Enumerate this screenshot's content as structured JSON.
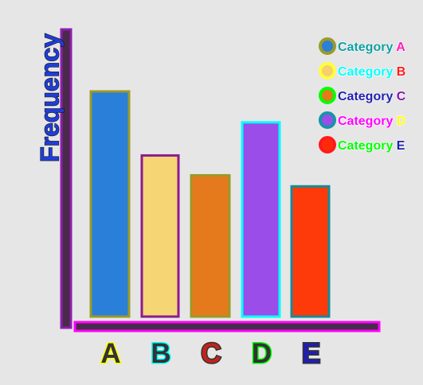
{
  "chart_data": {
    "type": "bar",
    "categories": [
      "A",
      "B",
      "C",
      "D",
      "E"
    ],
    "values": [
      10.2,
      7.3,
      6.4,
      8.8,
      5.9
    ],
    "ylabel": "Frequency",
    "legend": {
      "placement": "top-right",
      "items": [
        {
          "prefix": "Category ",
          "suffix": "A",
          "fill": "#2a7fd8",
          "ring": "#9a9a2a",
          "text": "#0f9ea0",
          "text_stroke": "#ffffff",
          "suffix_color": "#ff1fb8"
        },
        {
          "prefix": "Category ",
          "suffix": "B",
          "fill": "#f5d06c",
          "ring": "#ffff3a",
          "text": "#00ffff",
          "text_stroke": "#ffffff",
          "suffix_color": "#ff1a1a"
        },
        {
          "prefix": "Category ",
          "suffix": "C",
          "fill": "#e47a1b",
          "ring": "#00ff00",
          "text": "#1f1fb0",
          "text_stroke": "#ffffff",
          "suffix_color": "#7e16a8"
        },
        {
          "prefix": "Category ",
          "suffix": "D",
          "fill": "#9a4de8",
          "ring": "#1495a6",
          "text": "#ff00ff",
          "text_stroke": "#ffffff",
          "suffix_color": "#ffff00"
        },
        {
          "prefix": "Category ",
          "suffix": "E",
          "fill": "#ff2a0a",
          "ring": "#ff1a1a",
          "text": "#00ff00",
          "text_stroke": "#ffffff",
          "suffix_color": "#1f1fb0"
        }
      ]
    },
    "style": {
      "background": "#e6e6e6",
      "y_axis": {
        "fill": "#4a2a4a",
        "stroke": "#8e1db1"
      },
      "x_axis": {
        "fill": "#4a2a4a",
        "stroke": "#ff00ff"
      },
      "y_label_color": "#1f3ed8",
      "y_label_stroke": "#111111",
      "bars": [
        {
          "fill": "#2a7fd8",
          "stroke": "#9a9a2a"
        },
        {
          "fill": "#f5d574",
          "stroke": "#8e1b8e"
        },
        {
          "fill": "#e47a1b",
          "stroke": "#9a9a2a"
        },
        {
          "fill": "#9a4de8",
          "stroke": "#00ffff"
        },
        {
          "fill": "#ff3a0a",
          "stroke": "#168a9a"
        }
      ],
      "tick_labels": [
        {
          "fill": "#333333",
          "stroke": "#ffff00"
        },
        {
          "fill": "#333333",
          "stroke": "#00ffff"
        },
        {
          "fill": "#c2231a",
          "stroke": "#333333"
        },
        {
          "fill": "#333333",
          "stroke": "#00ff00"
        },
        {
          "fill": "#1f1fb0",
          "stroke": "#333333"
        }
      ]
    }
  }
}
